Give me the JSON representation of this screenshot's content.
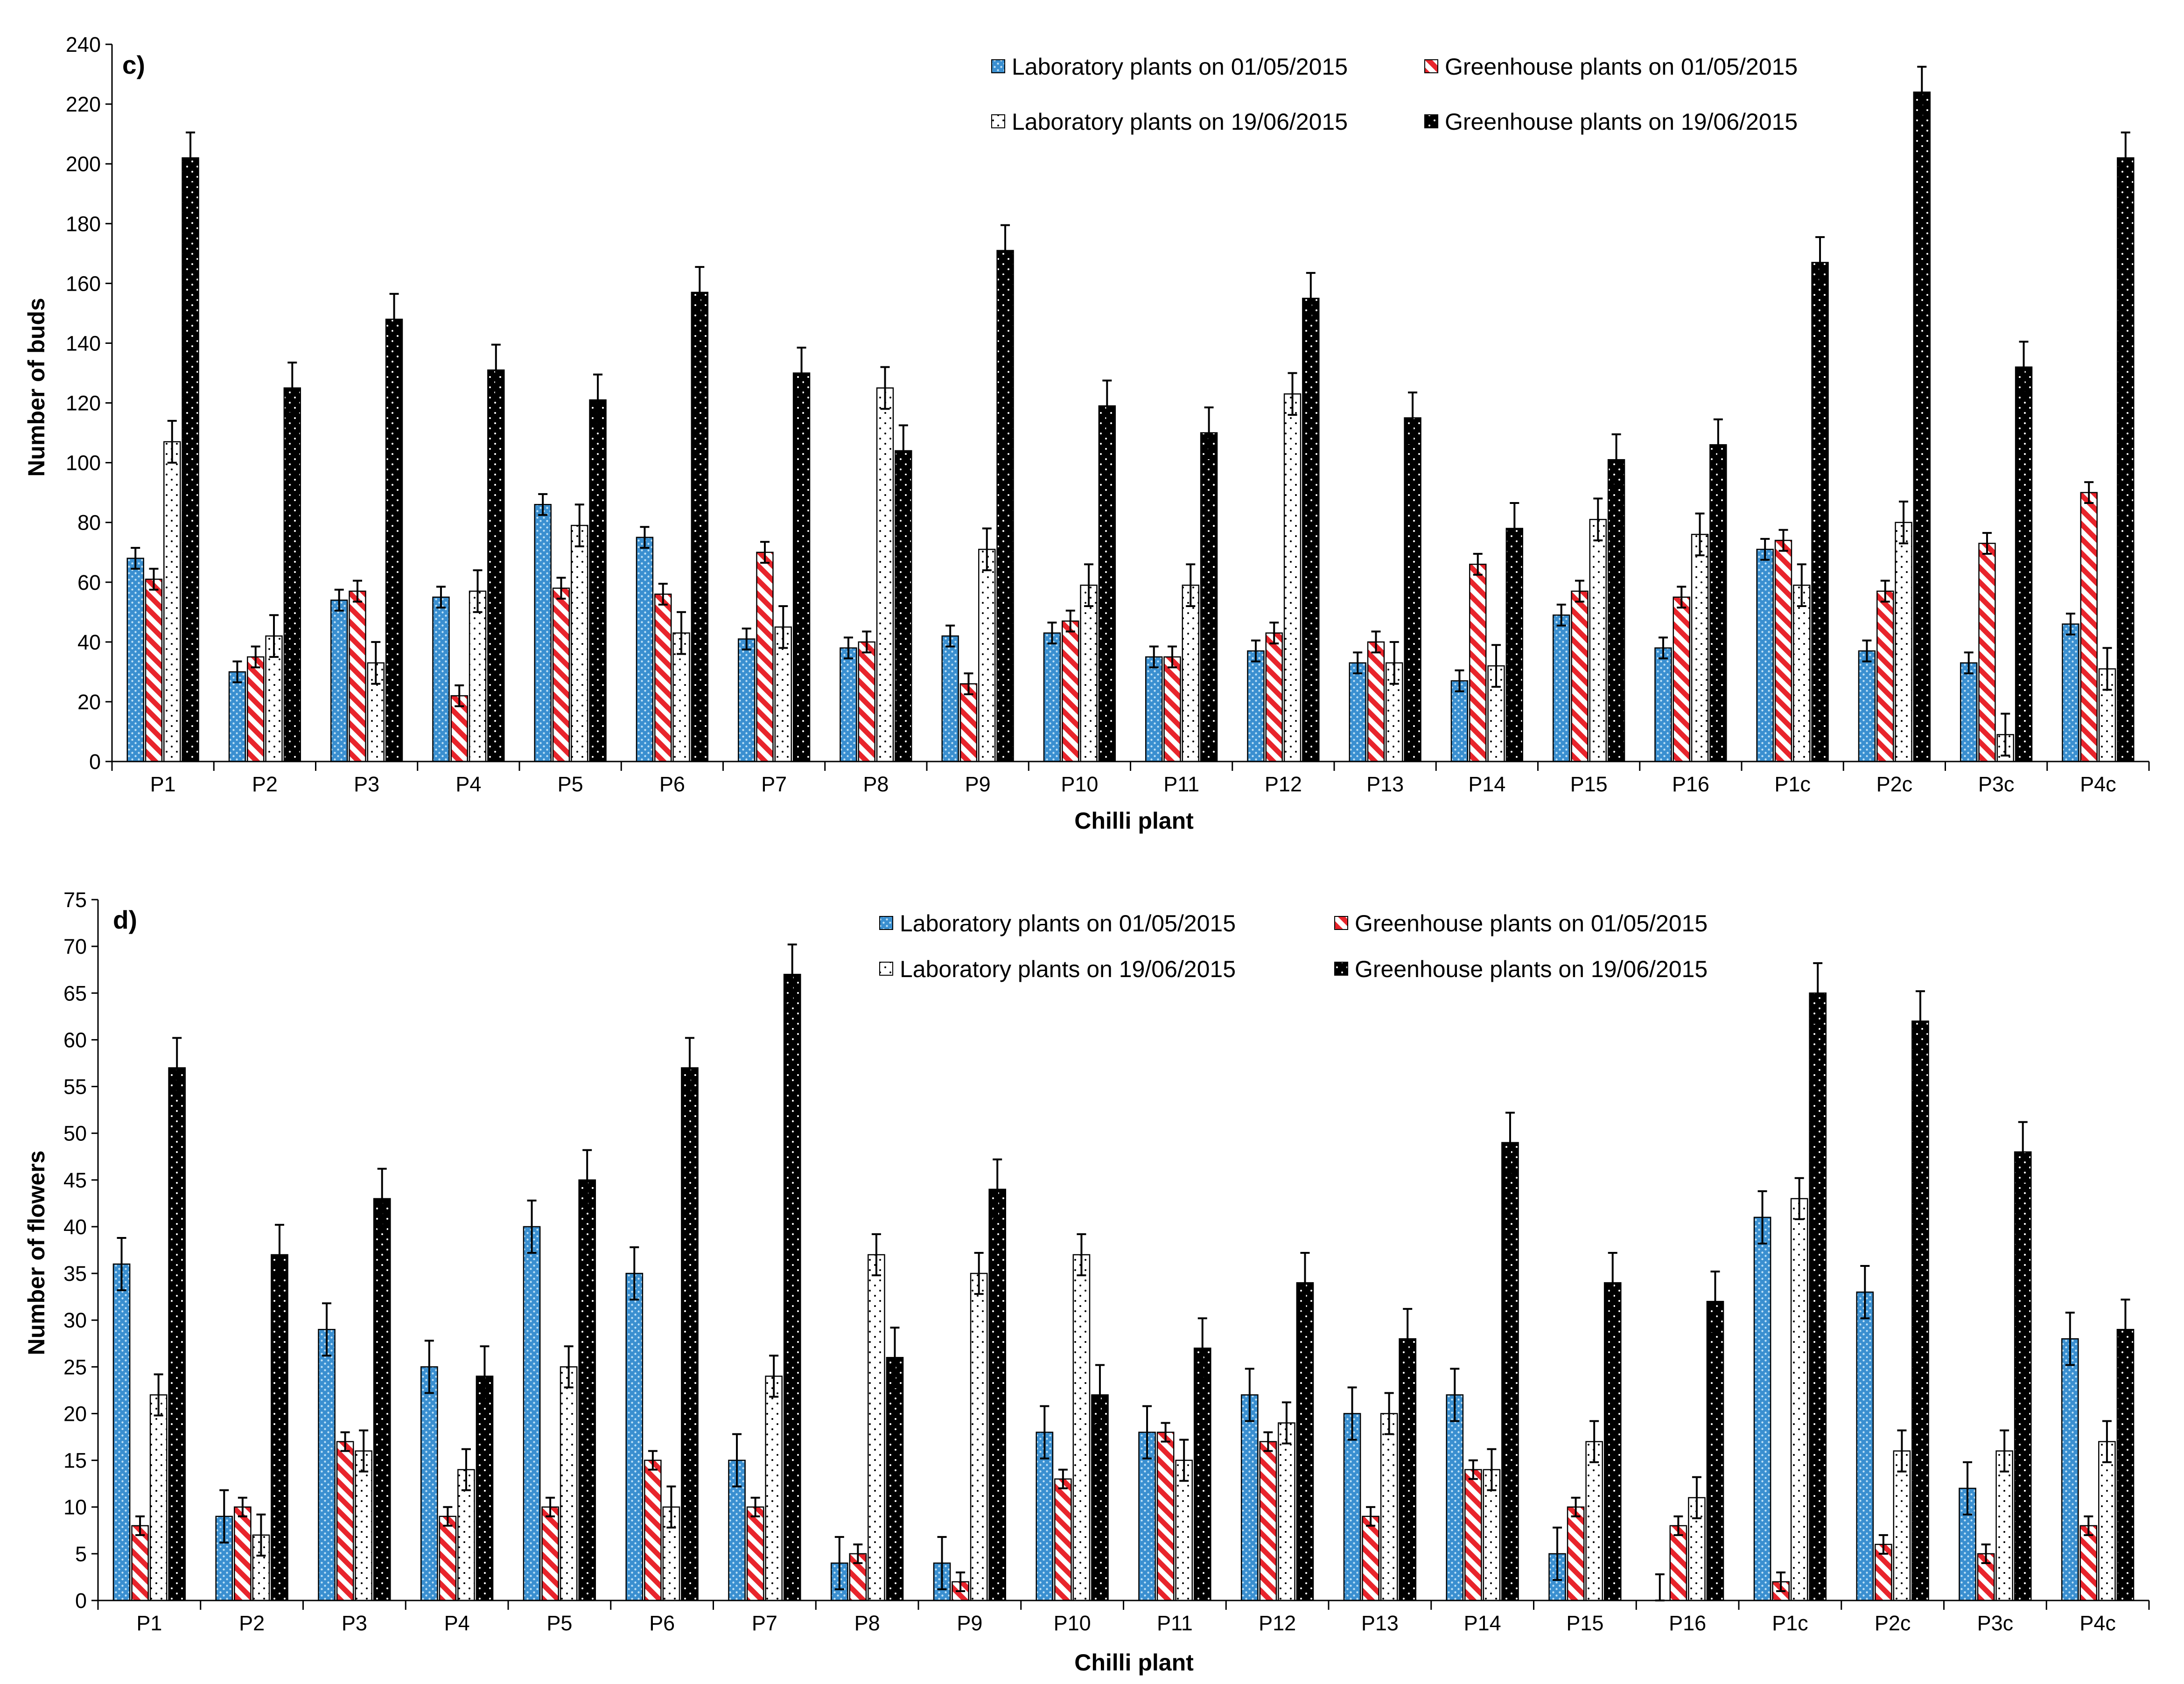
{
  "patterns": {
    "lab_may": {
      "fill": "#3a8fd0",
      "dot": "#bfe2f7"
    },
    "gh_may": {
      "fill": "#ffffff",
      "stripe": "#e8242b"
    },
    "lab_jun": {
      "fill": "#ffffff",
      "dot": "#000000"
    },
    "gh_jun": {
      "fill": "#000000",
      "dot": "#ffffff"
    }
  },
  "chart_data": [
    {
      "type": "bar",
      "panel_label": "c)",
      "xlabel": "Chilli plant",
      "ylabel": "Number of buds",
      "ylim": [
        0,
        240
      ],
      "ytick_step": 20,
      "yticks": [
        "0",
        "20",
        "40",
        "60",
        "80",
        "100",
        "120",
        "140",
        "160",
        "180",
        "200",
        "220",
        "240"
      ],
      "legend_position": "top-right",
      "categories": [
        "P1",
        "P2",
        "P3",
        "P4",
        "P5",
        "P6",
        "P7",
        "P8",
        "P9",
        "P10",
        "P11",
        "P12",
        "P13",
        "P14",
        "P15",
        "P16",
        "P1c",
        "P2c",
        "P3c",
        "P4c"
      ],
      "series": [
        {
          "name": "Laboratory plants on 01/05/2015",
          "pattern": "lab_may",
          "values": [
            68,
            30,
            54,
            55,
            86,
            75,
            41,
            38,
            42,
            43,
            35,
            37,
            33,
            27,
            49,
            38,
            71,
            37,
            33,
            46
          ],
          "errors": [
            3.5,
            3.5,
            3.5,
            3.5,
            3.5,
            3.5,
            3.5,
            3.5,
            3.5,
            3.5,
            3.5,
            3.5,
            3.5,
            3.5,
            3.5,
            3.5,
            3.5,
            3.5,
            3.5,
            3.5
          ]
        },
        {
          "name": "Greenhouse plants on 01/05/2015",
          "pattern": "gh_may",
          "values": [
            61,
            35,
            57,
            22,
            58,
            56,
            70,
            40,
            26,
            47,
            35,
            43,
            40,
            66,
            57,
            55,
            74,
            57,
            73,
            90
          ],
          "errors": [
            3.5,
            3.5,
            3.5,
            3.5,
            3.5,
            3.5,
            3.5,
            3.5,
            3.5,
            3.5,
            3.5,
            3.5,
            3.5,
            3.5,
            3.5,
            3.5,
            3.5,
            3.5,
            3.5,
            3.5
          ]
        },
        {
          "name": "Laboratory plants on 19/06/2015",
          "pattern": "lab_jun",
          "values": [
            107,
            42,
            33,
            57,
            79,
            43,
            45,
            125,
            71,
            59,
            59,
            123,
            33,
            32,
            81,
            76,
            59,
            80,
            9,
            31
          ],
          "errors": [
            7,
            7,
            7,
            7,
            7,
            7,
            7,
            7,
            7,
            7,
            7,
            7,
            7,
            7,
            7,
            7,
            7,
            7,
            7,
            7
          ]
        },
        {
          "name": "Greenhouse plants on 19/06/2015",
          "pattern": "gh_jun",
          "values": [
            202,
            125,
            148,
            131,
            121,
            157,
            130,
            104,
            171,
            119,
            110,
            155,
            115,
            78,
            101,
            106,
            167,
            224,
            132,
            202
          ],
          "errors": [
            8.5,
            8.5,
            8.5,
            8.5,
            8.5,
            8.5,
            8.5,
            8.5,
            8.5,
            8.5,
            8.5,
            8.5,
            8.5,
            8.5,
            8.5,
            8.5,
            8.5,
            8.5,
            8.5,
            8.5
          ]
        }
      ]
    },
    {
      "type": "bar",
      "panel_label": "d)",
      "xlabel": "Chilli plant",
      "ylabel": "Number of flowers",
      "ylim": [
        0,
        75
      ],
      "ytick_step": 5,
      "yticks": [
        "0",
        "5",
        "10",
        "15",
        "20",
        "25",
        "30",
        "35",
        "40",
        "45",
        "50",
        "55",
        "60",
        "65",
        "70",
        "75"
      ],
      "legend_position": "top-right",
      "categories": [
        "P1",
        "P2",
        "P3",
        "P4",
        "P5",
        "P6",
        "P7",
        "P8",
        "P9",
        "P10",
        "P11",
        "P12",
        "P13",
        "P14",
        "P15",
        "P16",
        "P1c",
        "P2c",
        "P3c",
        "P4c"
      ],
      "series": [
        {
          "name": "Laboratory plants on 01/05/2015",
          "pattern": "lab_may",
          "values": [
            36,
            9,
            29,
            25,
            40,
            35,
            15,
            4,
            4,
            18,
            18,
            22,
            20,
            22,
            5,
            0,
            41,
            33,
            12,
            28
          ],
          "errors": [
            2.8,
            2.8,
            2.8,
            2.8,
            2.8,
            2.8,
            2.8,
            2.8,
            2.8,
            2.8,
            2.8,
            2.8,
            2.8,
            2.8,
            2.8,
            2.8,
            2.8,
            2.8,
            2.8,
            2.8
          ]
        },
        {
          "name": "Greenhouse plants on 01/05/2015",
          "pattern": "gh_may",
          "values": [
            8,
            10,
            17,
            9,
            10,
            15,
            10,
            5,
            2,
            13,
            18,
            17,
            9,
            14,
            10,
            8,
            2,
            6,
            5,
            8
          ],
          "errors": [
            1,
            1,
            1,
            1,
            1,
            1,
            1,
            1,
            1,
            1,
            1,
            1,
            1,
            1,
            1,
            1,
            1,
            1,
            1,
            1
          ]
        },
        {
          "name": "Laboratory plants on 19/06/2015",
          "pattern": "lab_jun",
          "values": [
            22,
            7,
            16,
            14,
            25,
            10,
            24,
            37,
            35,
            37,
            15,
            19,
            20,
            14,
            17,
            11,
            43,
            16,
            16,
            17
          ],
          "errors": [
            2.2,
            2.2,
            2.2,
            2.2,
            2.2,
            2.2,
            2.2,
            2.2,
            2.2,
            2.2,
            2.2,
            2.2,
            2.2,
            2.2,
            2.2,
            2.2,
            2.2,
            2.2,
            2.2,
            2.2
          ]
        },
        {
          "name": "Greenhouse plants on 19/06/2015",
          "pattern": "gh_jun",
          "values": [
            57,
            37,
            43,
            24,
            45,
            57,
            67,
            26,
            44,
            22,
            27,
            34,
            28,
            49,
            34,
            32,
            65,
            62,
            48,
            29
          ],
          "errors": [
            3.2,
            3.2,
            3.2,
            3.2,
            3.2,
            3.2,
            3.2,
            3.2,
            3.2,
            3.2,
            3.2,
            3.2,
            3.2,
            3.2,
            3.2,
            3.2,
            3.2,
            3.2,
            3.2,
            3.2
          ]
        }
      ]
    }
  ]
}
